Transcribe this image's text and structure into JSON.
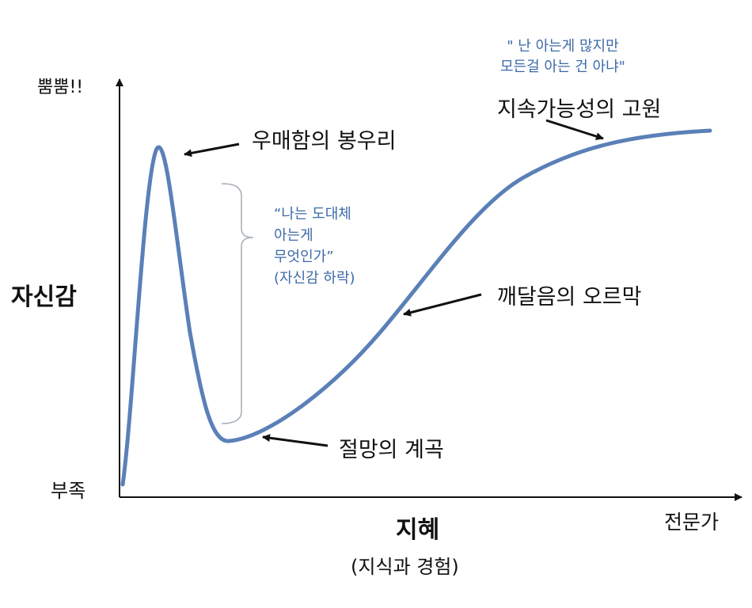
{
  "axes": {
    "y_label": "자신감",
    "y_top": "뿜뿜!!",
    "y_bottom": "부족",
    "x_label": "지혜",
    "x_sublabel": "(지식과 경험)",
    "x_right": "전문가"
  },
  "annotations": {
    "peak": "우매함의 봉우리",
    "valley": "절망의 계곡",
    "slope": "깨달음의 오르막",
    "plateau": "지속가능성의 고원"
  },
  "quotes": {
    "top_line1": "\" 난 아는게 많지만",
    "top_line2": "모든걸 아는 건 아냐\"",
    "mid_line1": "“나는 도대체",
    "mid_line2": "아는게",
    "mid_line3": "무엇인가”",
    "mid_line4": "(자신감 하락)"
  },
  "colors": {
    "curve": "#5b80b8",
    "quote_text": "#3d6aa8",
    "brace": "#a8b0b8",
    "axis": "#111111"
  }
}
